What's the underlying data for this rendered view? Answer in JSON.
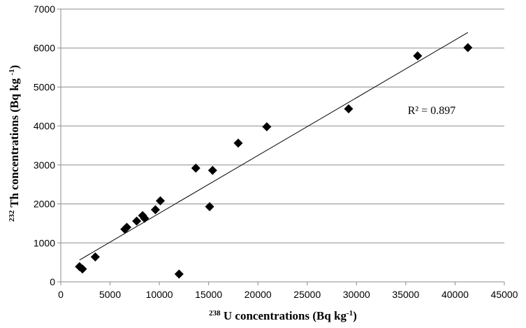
{
  "chart_data": {
    "type": "scatter",
    "xlabel": {
      "sup": "238",
      "main": " U concentrations (Bq kg",
      "unit_sup": "-1",
      "close": ")"
    },
    "ylabel": {
      "sup": "232",
      "main": " Th concentrations (Bq kg ",
      "unit_sup": "-1",
      "close": ")"
    },
    "xlim": [
      0,
      45000
    ],
    "ylim": [
      0,
      7000
    ],
    "x_ticks": [
      0,
      5000,
      10000,
      15000,
      20000,
      25000,
      30000,
      35000,
      40000,
      45000
    ],
    "y_ticks": [
      0,
      1000,
      2000,
      3000,
      4000,
      5000,
      6000,
      7000
    ],
    "grid": {
      "horizontal": true,
      "vertical": false
    },
    "legend": "none",
    "marker": "diamond",
    "marker_color": "#000000",
    "points": [
      {
        "x": 1900,
        "y": 390
      },
      {
        "x": 2200,
        "y": 330
      },
      {
        "x": 3500,
        "y": 640
      },
      {
        "x": 6500,
        "y": 1350
      },
      {
        "x": 6700,
        "y": 1400
      },
      {
        "x": 7700,
        "y": 1560
      },
      {
        "x": 8300,
        "y": 1700
      },
      {
        "x": 8500,
        "y": 1630
      },
      {
        "x": 9600,
        "y": 1850
      },
      {
        "x": 10100,
        "y": 2080
      },
      {
        "x": 12000,
        "y": 200
      },
      {
        "x": 13700,
        "y": 2920
      },
      {
        "x": 15100,
        "y": 1930
      },
      {
        "x": 15400,
        "y": 2860
      },
      {
        "x": 18000,
        "y": 3560
      },
      {
        "x": 20900,
        "y": 3980
      },
      {
        "x": 29200,
        "y": 4440
      },
      {
        "x": 36200,
        "y": 5800
      },
      {
        "x": 41300,
        "y": 6010
      }
    ],
    "trendline": {
      "type": "linear",
      "from": [
        1900,
        560
      ],
      "to": [
        41300,
        6400
      ],
      "color": "#000000"
    },
    "annotation": {
      "text": "R² = 0.897",
      "x": 35200,
      "y": 4400
    }
  }
}
